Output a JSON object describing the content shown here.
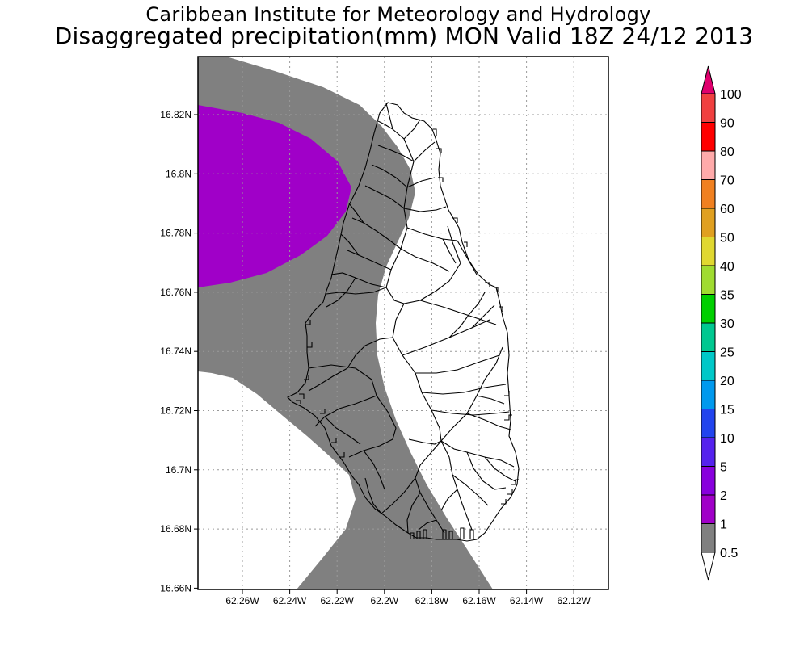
{
  "header": {
    "title": "Caribbean Institute for Meteorology and Hydrology",
    "subtitle": "Disaggregated precipitation(mm) MON Valid 18Z 24/12 2013"
  },
  "axes": {
    "y_labels": [
      "16.82N",
      "16.8N",
      "16.78N",
      "16.76N",
      "16.74N",
      "16.72N",
      "16.7N",
      "16.68N",
      "16.66N"
    ],
    "x_labels": [
      "62.26W",
      "62.24W",
      "62.22W",
      "62.2W",
      "62.18W",
      "62.16W",
      "62.14W",
      "62.12W"
    ]
  },
  "map": {
    "lat_range": [
      16.66,
      16.838
    ],
    "lon_range": [
      -62.278,
      -62.103
    ]
  },
  "colorbar": {
    "labels": [
      "100",
      "90",
      "80",
      "70",
      "60",
      "50",
      "40",
      "35",
      "30",
      "25",
      "20",
      "15",
      "10",
      "5",
      "2",
      "1",
      "0.5"
    ],
    "colors": [
      "#e0006e",
      "#f04040",
      "#ff0000",
      "#ffaaaa",
      "#f08020",
      "#e0a020",
      "#e0d830",
      "#a0dc30",
      "#00d000",
      "#00c890",
      "#00c8c8",
      "#0099ee",
      "#2244ee",
      "#5522ee",
      "#8800dd",
      "#a000c8",
      "#808080"
    ]
  },
  "legend_colors": {
    "light": "#808080",
    "purple": "#a000c8"
  }
}
